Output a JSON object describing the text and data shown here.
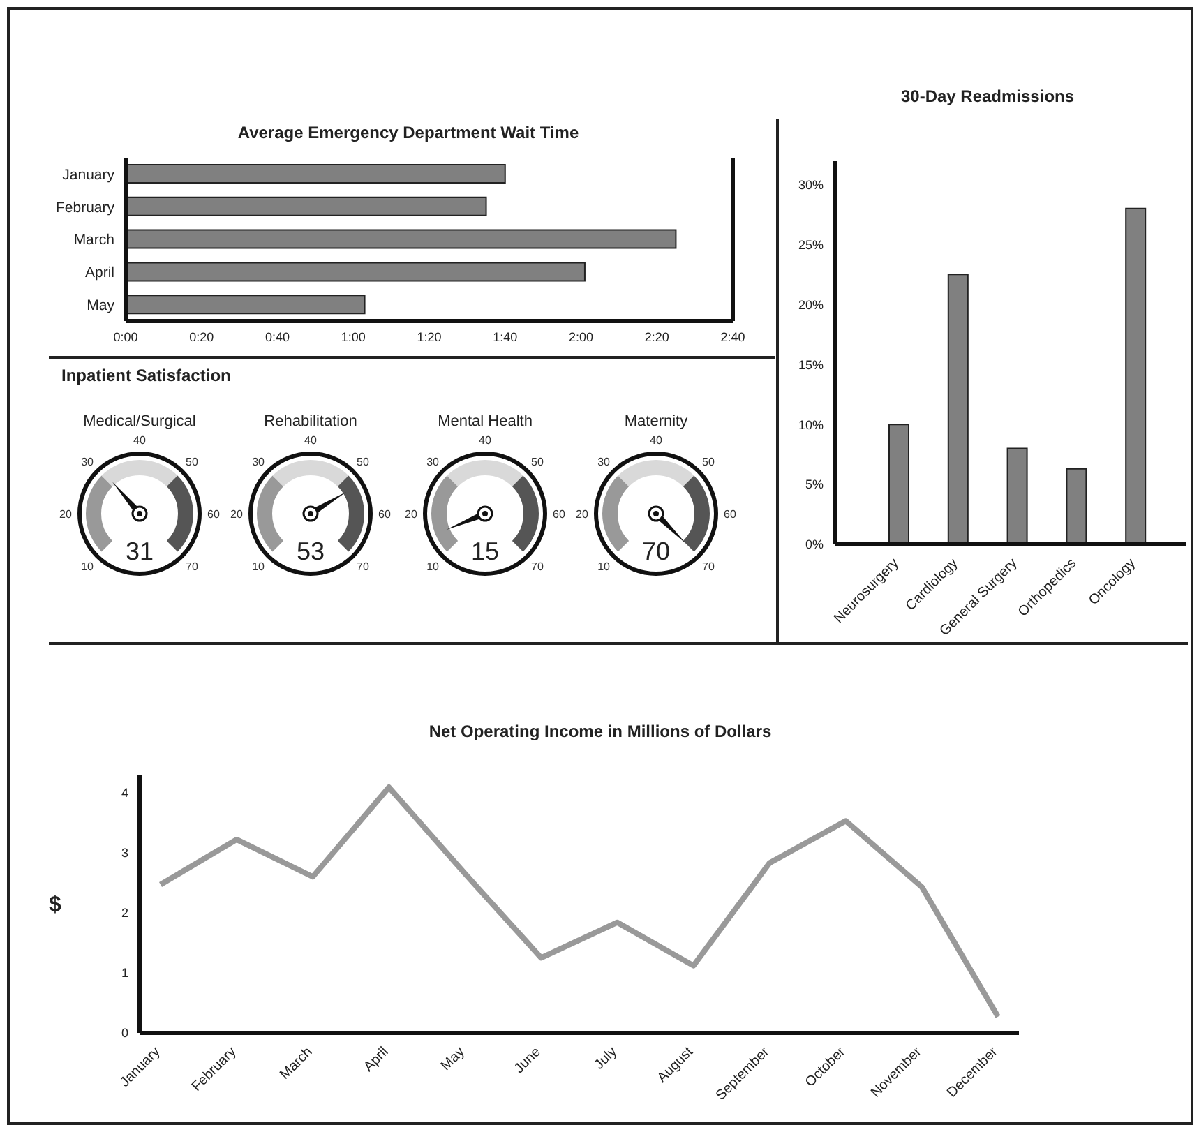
{
  "chart_data": [
    {
      "type": "bar",
      "orientation": "horizontal",
      "title": "Average Emergency Department Wait Time",
      "categories": [
        "January",
        "February",
        "March",
        "April",
        "May"
      ],
      "values": [
        100,
        95,
        145,
        121,
        63
      ],
      "color": "#808080",
      "xlim": [
        0,
        160
      ],
      "xticks": [
        {
          "value": 0,
          "label": "0:00"
        },
        {
          "value": 20,
          "label": "0:20"
        },
        {
          "value": 40,
          "label": "0:40"
        },
        {
          "value": 60,
          "label": "1:00"
        },
        {
          "value": 80,
          "label": "1:20"
        },
        {
          "value": 100,
          "label": "1:40"
        },
        {
          "value": 120,
          "label": "2:00"
        },
        {
          "value": 140,
          "label": "2:20"
        },
        {
          "value": 160,
          "label": "2:40"
        }
      ]
    },
    {
      "type": "other",
      "subtitle": "Inpatient Satisfaction",
      "title": "Medical/Surgical",
      "values": [
        31
      ],
      "data_labels": true,
      "annotations": [
        "10",
        "20",
        "30",
        "40",
        "50",
        "60",
        "70"
      ]
    },
    {
      "type": "other",
      "title": "Rehabilitation",
      "values": [
        53
      ],
      "data_labels": true,
      "annotations": [
        "10",
        "20",
        "30",
        "40",
        "50",
        "60",
        "70"
      ]
    },
    {
      "type": "other",
      "title": "Mental Health",
      "values": [
        15
      ],
      "data_labels": true,
      "annotations": [
        "10",
        "20",
        "30",
        "40",
        "50",
        "60",
        "70"
      ]
    },
    {
      "type": "other",
      "title": "Maternity",
      "values": [
        70
      ],
      "data_labels": true,
      "annotations": [
        "10",
        "20",
        "30",
        "40",
        "50",
        "60",
        "70"
      ]
    },
    {
      "type": "bar",
      "title": "30-Day Readmissions",
      "categories": [
        "Neurosurgery",
        "Cardiology",
        "General Surgery",
        "Orthopedics",
        "Oncology"
      ],
      "values": [
        10,
        22.5,
        8,
        6.3,
        28
      ],
      "color": "#808080",
      "ylim": [
        0,
        32
      ],
      "yticks": [
        {
          "value": 0,
          "label": "0%"
        },
        {
          "value": 5,
          "label": "5%"
        },
        {
          "value": 10,
          "label": "10%"
        },
        {
          "value": 15,
          "label": "15%"
        },
        {
          "value": 20,
          "label": "20%"
        },
        {
          "value": 25,
          "label": "25%"
        },
        {
          "value": 30,
          "label": "30%"
        }
      ]
    },
    {
      "type": "line",
      "title": "Net Operating Income in Millions of Dollars",
      "ylabel": "$",
      "categories": [
        "January",
        "February",
        "March",
        "April",
        "May",
        "June",
        "July",
        "August",
        "September",
        "October",
        "November",
        "December"
      ],
      "values": [
        2.47,
        3.22,
        2.6,
        4.09,
        2.65,
        1.25,
        1.84,
        1.12,
        2.83,
        3.53,
        2.43,
        0.27
      ],
      "color": "#999999",
      "ylim": [
        0,
        4.3
      ],
      "yticks": [
        0,
        1,
        2,
        3,
        4
      ]
    }
  ]
}
